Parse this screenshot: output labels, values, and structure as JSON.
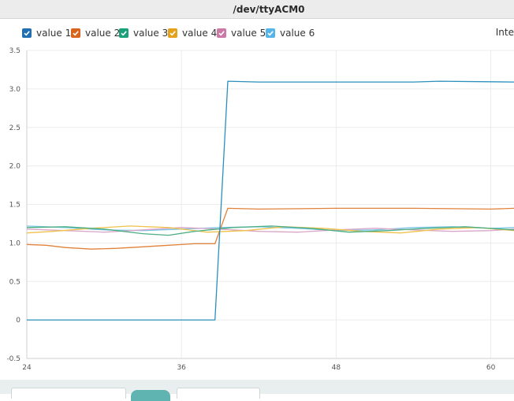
{
  "window": {
    "title": "/dev/ttyACM0"
  },
  "legend": {
    "items": [
      {
        "label": "value 1",
        "color": "#1f6fb2"
      },
      {
        "label": "value 2",
        "color": "#d9651c"
      },
      {
        "label": "value 3",
        "color": "#17a07a"
      },
      {
        "label": "value 4",
        "color": "#e6a11a"
      },
      {
        "label": "value 5",
        "color": "#cc79a7"
      },
      {
        "label": "value 6",
        "color": "#56b4e9"
      }
    ],
    "right_text": "Inte"
  },
  "chart_data": {
    "type": "line",
    "x_ticks": [
      24,
      36,
      48,
      60
    ],
    "y_ticks": [
      -0.5,
      0,
      0.5,
      1.0,
      1.5,
      2.0,
      2.5,
      3.0,
      3.5
    ],
    "y_tick_labels": [
      "-0.5",
      "0",
      "0.5",
      "1.0",
      "1.5",
      "2.0",
      "2.5",
      "3.0",
      "3.5"
    ],
    "xlim": [
      24,
      61.8
    ],
    "ylim": [
      -0.5,
      3.5
    ],
    "grid": true,
    "legend_position": "top",
    "series": [
      {
        "name": "value 1",
        "color": "#2a8fbd",
        "x": [
          24,
          30,
          36,
          38.6,
          39.6,
          42,
          48,
          54,
          56,
          61.8
        ],
        "y": [
          0,
          0,
          0,
          0,
          3.1,
          3.09,
          3.09,
          3.09,
          3.1,
          3.09
        ]
      },
      {
        "name": "value 2",
        "color": "#e0823a",
        "x": [
          24,
          25.5,
          27,
          29,
          31,
          33,
          35,
          37,
          38.6,
          39.6,
          42,
          48,
          54,
          60,
          61.8
        ],
        "y": [
          0.98,
          0.97,
          0.94,
          0.92,
          0.93,
          0.95,
          0.97,
          0.99,
          0.99,
          1.45,
          1.44,
          1.45,
          1.45,
          1.44,
          1.45
        ]
      },
      {
        "name": "value 3",
        "color": "#4caf84",
        "x": [
          24,
          27,
          30,
          33,
          35,
          37,
          40,
          43,
          46,
          49,
          52,
          55,
          58,
          61.8
        ],
        "y": [
          1.2,
          1.21,
          1.18,
          1.12,
          1.1,
          1.15,
          1.2,
          1.22,
          1.19,
          1.14,
          1.16,
          1.19,
          1.21,
          1.17
        ]
      },
      {
        "name": "value 4",
        "color": "#f0c24b",
        "x": [
          24,
          26,
          29,
          32,
          35,
          38,
          41,
          44,
          47,
          50,
          53,
          56,
          59,
          61.8
        ],
        "y": [
          1.13,
          1.15,
          1.19,
          1.22,
          1.2,
          1.14,
          1.16,
          1.21,
          1.19,
          1.15,
          1.13,
          1.18,
          1.2,
          1.16
        ]
      },
      {
        "name": "value 5",
        "color": "#d9a6c8",
        "x": [
          24,
          27,
          30,
          33,
          36,
          39,
          42,
          45,
          48,
          51,
          54,
          57,
          60,
          61.8
        ],
        "y": [
          1.18,
          1.16,
          1.14,
          1.17,
          1.2,
          1.18,
          1.15,
          1.14,
          1.17,
          1.19,
          1.17,
          1.15,
          1.16,
          1.18
        ]
      },
      {
        "name": "value 6",
        "color": "#7cc6e6",
        "x": [
          24,
          27,
          30,
          33,
          36,
          39,
          42,
          45,
          48,
          51,
          54,
          57,
          60,
          61.8
        ],
        "y": [
          1.22,
          1.2,
          1.17,
          1.16,
          1.18,
          1.2,
          1.21,
          1.19,
          1.16,
          1.17,
          1.2,
          1.21,
          1.19,
          1.2
        ]
      }
    ]
  }
}
